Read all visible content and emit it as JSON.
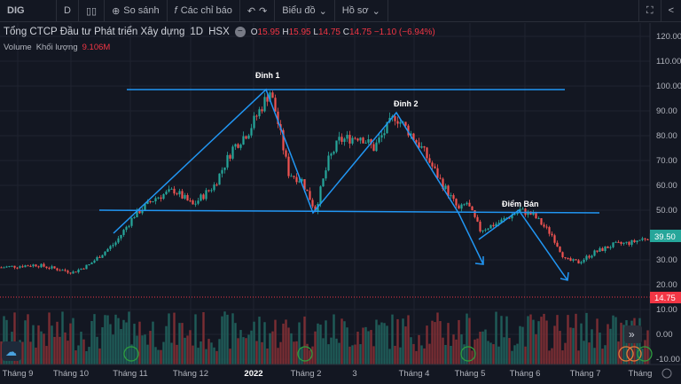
{
  "toolbar": {
    "symbol": "DIG",
    "interval": "D",
    "compare": "So sánh",
    "indicators": "Các chỉ báo",
    "chart": "Biểu đồ",
    "profile": "Hồ sơ"
  },
  "legend": {
    "name": "Tổng CTCP Đầu tư Phát triển Xây dựng",
    "interval": "1D",
    "exchange": "HSX",
    "o_label": "O",
    "o": "15.95",
    "h_label": "H",
    "h": "15.95",
    "l_label": "L",
    "l": "14.75",
    "c_label": "C",
    "c": "14.75",
    "change": "−1.10 (−6.94%)"
  },
  "volume": {
    "label": "Volume",
    "sub": "Khối lượng",
    "value": "9.106M"
  },
  "annotations": {
    "peak1": "Đỉnh 1",
    "peak2": "Đỉnh 2",
    "sell": "Điểm Bán"
  },
  "chart_data": {
    "type": "candlestick",
    "y_ticks": [
      "120.00",
      "110.00",
      "100.00",
      "90.00",
      "80.00",
      "70.00",
      "60.00",
      "50.00",
      "30.00",
      "20.00",
      "10.00",
      "0.00",
      "-10.00"
    ],
    "ylim": [
      -10,
      120
    ],
    "x_ticks": [
      "Tháng 9",
      "Tháng 10",
      "Tháng 11",
      "Tháng 12",
      "2022",
      "Tháng 2",
      "3",
      "Tháng 4",
      "Tháng 5",
      "Tháng 6",
      "Tháng 7",
      "Tháng"
    ],
    "last_price": "39.50",
    "prev_close_marker": "14.75",
    "price_path": [
      [
        0,
        27
      ],
      [
        13,
        28
      ],
      [
        27,
        25
      ],
      [
        33,
        28
      ],
      [
        43,
        37
      ],
      [
        50,
        48
      ],
      [
        58,
        55
      ],
      [
        65,
        58
      ],
      [
        72,
        52
      ],
      [
        80,
        60
      ],
      [
        87,
        75
      ],
      [
        93,
        82
      ],
      [
        98,
        92
      ],
      [
        101,
        98
      ],
      [
        103,
        90
      ],
      [
        108,
        65
      ],
      [
        113,
        62
      ],
      [
        118,
        50
      ],
      [
        123,
        70
      ],
      [
        127,
        78
      ],
      [
        135,
        80
      ],
      [
        140,
        75
      ],
      [
        148,
        88
      ],
      [
        153,
        82
      ],
      [
        158,
        75
      ],
      [
        165,
        62
      ],
      [
        172,
        50
      ],
      [
        175,
        53
      ],
      [
        180,
        42
      ],
      [
        187,
        45
      ],
      [
        195,
        50
      ],
      [
        200,
        48
      ],
      [
        207,
        40
      ],
      [
        212,
        30
      ],
      [
        217,
        29
      ],
      [
        223,
        33
      ],
      [
        230,
        36
      ],
      [
        237,
        37
      ],
      [
        244,
        39.5
      ]
    ],
    "colors": {
      "up": "#26a69a",
      "down": "#ef5350",
      "drawing": "#2196f3",
      "last": "#26a69a",
      "marker": "#f23645"
    }
  }
}
